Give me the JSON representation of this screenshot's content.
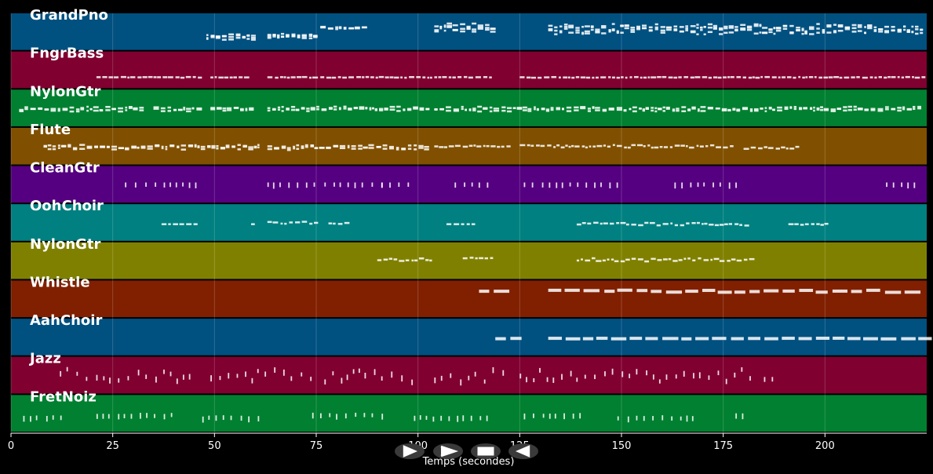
{
  "chart_data": {
    "type": "piano-roll",
    "xlabel": "Temps (secondes)",
    "xlim": [
      0,
      225
    ],
    "xticks": [
      0,
      25,
      50,
      75,
      100,
      125,
      150,
      175,
      200
    ],
    "grid": true,
    "tracks": [
      {
        "name": "GrandPno",
        "color": "#005080",
        "segments": [
          [
            48,
            59,
            0.65,
            0.56,
            0.1,
            3
          ],
          [
            63,
            75,
            0.62,
            0.54,
            0.08,
            3
          ],
          [
            76,
            87,
            0.38,
            0.34,
            0.05,
            2
          ],
          [
            104,
            118,
            0.42,
            0.3,
            0.18,
            3
          ],
          [
            132,
            224,
            0.45,
            0.32,
            0.2,
            3
          ]
        ]
      },
      {
        "name": "FngrBass",
        "color": "#800030",
        "segments": [
          [
            21,
            34,
            0.68,
            0.68,
            0.02,
            1
          ],
          [
            35,
            47,
            0.68,
            0.68,
            0.02,
            1
          ],
          [
            49,
            59,
            0.68,
            0.68,
            0.02,
            1
          ],
          [
            63,
            75,
            0.68,
            0.68,
            0.02,
            1
          ],
          [
            76,
            103,
            0.68,
            0.68,
            0.02,
            1
          ],
          [
            104,
            118,
            0.68,
            0.68,
            0.02,
            1
          ],
          [
            125,
            224,
            0.68,
            0.68,
            0.02,
            1
          ]
        ]
      },
      {
        "name": "NylonGtr",
        "color": "#008030",
        "segments": [
          [
            2,
            33,
            0.52,
            0.45,
            0.1,
            2
          ],
          [
            35,
            47,
            0.52,
            0.45,
            0.1,
            2
          ],
          [
            49,
            59,
            0.52,
            0.45,
            0.1,
            2
          ],
          [
            63,
            102,
            0.52,
            0.45,
            0.1,
            2
          ],
          [
            104,
            224,
            0.52,
            0.45,
            0.1,
            2
          ]
        ]
      },
      {
        "name": "Flute",
        "color": "#805000",
        "segments": [
          [
            8,
            38,
            0.52,
            0.45,
            0.1,
            2
          ],
          [
            39,
            61,
            0.52,
            0.45,
            0.1,
            2
          ],
          [
            63,
            103,
            0.52,
            0.45,
            0.12,
            2
          ],
          [
            104,
            122,
            0.48,
            0.45,
            0.06,
            1
          ],
          [
            125,
            178,
            0.48,
            0.45,
            0.08,
            1
          ],
          [
            180,
            194,
            0.52,
            0.45,
            0.06,
            1
          ]
        ]
      },
      {
        "name": "CleanGtr",
        "color": "#550080",
        "segments": [
          [
            28,
            46,
            0.45,
            0.45,
            0.0,
            0
          ],
          [
            63,
            76,
            0.45,
            0.45,
            0.0,
            0
          ],
          [
            77,
            92,
            0.45,
            0.45,
            0.0,
            0
          ],
          [
            91,
            98,
            0.45,
            0.45,
            0.0,
            0
          ],
          [
            109,
            118,
            0.45,
            0.45,
            0.0,
            0
          ],
          [
            126,
            149,
            0.45,
            0.45,
            0.0,
            0
          ],
          [
            163,
            180,
            0.45,
            0.45,
            0.0,
            0
          ],
          [
            215,
            222,
            0.45,
            0.45,
            0.0,
            0
          ]
        ]
      },
      {
        "name": "OohChoir",
        "color": "#008080",
        "segments": [
          [
            37,
            46,
            0.52,
            0.52,
            0.0,
            0
          ],
          [
            59,
            60,
            0.52,
            0.52,
            0.0,
            0
          ],
          [
            63,
            75,
            0.48,
            0.44,
            0.06,
            1
          ],
          [
            78,
            83,
            0.5,
            0.46,
            0.04,
            1
          ],
          [
            107,
            114,
            0.52,
            0.52,
            0.0,
            0
          ],
          [
            139,
            181,
            0.52,
            0.46,
            0.08,
            1
          ],
          [
            191,
            200,
            0.52,
            0.5,
            0.04,
            1
          ]
        ]
      },
      {
        "name": "NylonGtr",
        "color": "#808000",
        "segments": [
          [
            90,
            103,
            0.45,
            0.42,
            0.08,
            1
          ],
          [
            111,
            118,
            0.4,
            0.4,
            0.02,
            1
          ],
          [
            139,
            182,
            0.45,
            0.4,
            0.1,
            1
          ]
        ]
      },
      {
        "name": "Whistle",
        "color": "#802000",
        "segments": [
          [
            115,
            121,
            0.25,
            0.25,
            0.0,
            0
          ],
          [
            132,
            224,
            0.25,
            0.22,
            0.06,
            0
          ]
        ]
      },
      {
        "name": "AahChoir",
        "color": "#005080",
        "segments": [
          [
            119,
            125,
            0.5,
            0.5,
            0.02,
            0
          ],
          [
            132,
            224,
            0.5,
            0.5,
            0.02,
            0
          ]
        ]
      },
      {
        "name": "Jazz",
        "color": "#800030",
        "segments": [
          [
            12,
            44,
            0.45,
            0.25,
            0.35,
            0
          ],
          [
            49,
            74,
            0.45,
            0.25,
            0.35,
            0
          ],
          [
            77,
            99,
            0.45,
            0.25,
            0.35,
            0
          ],
          [
            104,
            122,
            0.45,
            0.25,
            0.35,
            0
          ],
          [
            125,
            182,
            0.45,
            0.25,
            0.35,
            0
          ],
          [
            185,
            188,
            0.55,
            0.55,
            0.0,
            0
          ]
        ]
      },
      {
        "name": "FretNoiz",
        "color": "#008030",
        "segments": [
          [
            3,
            13,
            0.57,
            0.57,
            0.04,
            0
          ],
          [
            21,
            40,
            0.5,
            0.5,
            0.04,
            0
          ],
          [
            47,
            63,
            0.57,
            0.57,
            0.04,
            0
          ],
          [
            74,
            92,
            0.5,
            0.5,
            0.04,
            0
          ],
          [
            99,
            118,
            0.57,
            0.57,
            0.04,
            0
          ],
          [
            126,
            142,
            0.5,
            0.5,
            0.04,
            0
          ],
          [
            149,
            168,
            0.57,
            0.57,
            0.04,
            0
          ],
          [
            178,
            181,
            0.5,
            0.5,
            0.02,
            0
          ]
        ]
      }
    ]
  },
  "controls": {
    "play": "play-icon",
    "forward": "fast-forward-icon",
    "stop": "stop-icon",
    "rewind": "rewind-icon"
  }
}
